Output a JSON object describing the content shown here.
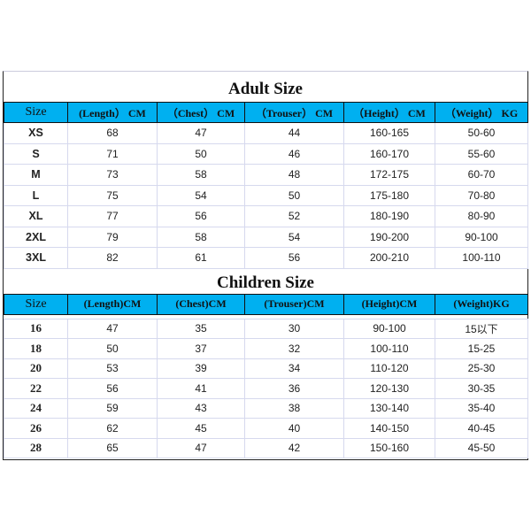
{
  "adult": {
    "title": "Adult Size",
    "headers": [
      "Size",
      "(Length） CM",
      "（Chest） CM",
      "（Trouser） CM",
      "（Height） CM",
      "（Weight） KG"
    ],
    "rows": [
      [
        "XS",
        "68",
        "47",
        "44",
        "160-165",
        "50-60"
      ],
      [
        "S",
        "71",
        "50",
        "46",
        "160-170",
        "55-60"
      ],
      [
        "M",
        "73",
        "58",
        "48",
        "172-175",
        "60-70"
      ],
      [
        "L",
        "75",
        "54",
        "50",
        "175-180",
        "70-80"
      ],
      [
        "XL",
        "77",
        "56",
        "52",
        "180-190",
        "80-90"
      ],
      [
        "2XL",
        "79",
        "58",
        "54",
        "190-200",
        "90-100"
      ],
      [
        "3XL",
        "82",
        "61",
        "56",
        "200-210",
        "100-110"
      ]
    ]
  },
  "children": {
    "title": "Children Size",
    "headers": [
      "Size",
      "(Length)CM",
      "(Chest)CM",
      "(Trouser)CM",
      "(Height)CM",
      "(Weight)KG"
    ],
    "rows": [
      [
        "16",
        "47",
        "35",
        "30",
        "90-100",
        "15以下"
      ],
      [
        "18",
        "50",
        "37",
        "32",
        "100-110",
        "15-25"
      ],
      [
        "20",
        "53",
        "39",
        "34",
        "110-120",
        "25-30"
      ],
      [
        "22",
        "56",
        "41",
        "36",
        "120-130",
        "30-35"
      ],
      [
        "24",
        "59",
        "43",
        "38",
        "130-140",
        "35-40"
      ],
      [
        "26",
        "62",
        "45",
        "40",
        "140-150",
        "40-45"
      ],
      [
        "28",
        "65",
        "47",
        "42",
        "150-160",
        "45-50"
      ]
    ]
  },
  "colors": {
    "header_bg": "#00b0f0"
  }
}
